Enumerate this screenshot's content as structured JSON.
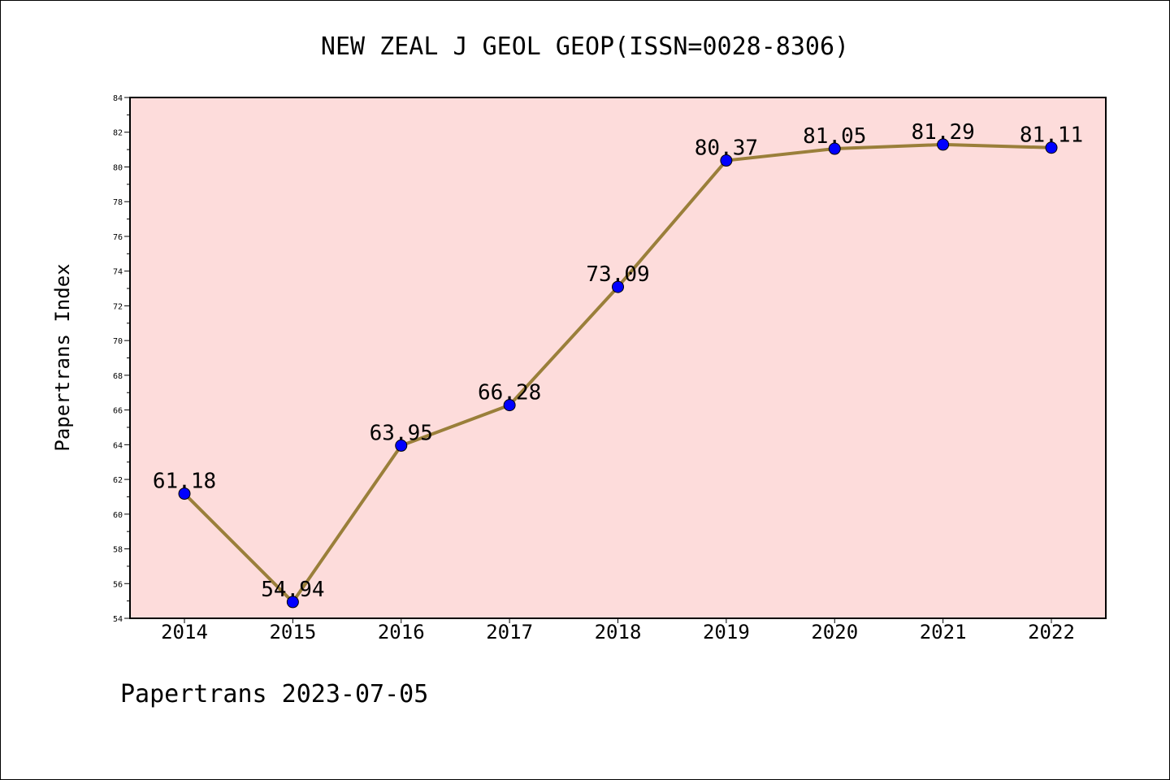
{
  "chart_data": {
    "type": "line",
    "title": "NEW ZEAL J GEOL GEOP(ISSN=0028-8306)",
    "xlabel": "",
    "ylabel": "Papertrans Index",
    "categories": [
      "2014",
      "2015",
      "2016",
      "2017",
      "2018",
      "2019",
      "2020",
      "2021",
      "2022"
    ],
    "series": [
      {
        "values": [
          61.18,
          54.94,
          63.95,
          66.28,
          73.09,
          80.37,
          81.05,
          81.29,
          81.11
        ],
        "labels": [
          "61.18",
          "54.94",
          "63.95",
          "66.28",
          "73.09",
          "80.37",
          "81.05",
          "81.29",
          "81.11"
        ],
        "line_color": "#9a7f3a",
        "marker_color": "#0000ff"
      }
    ],
    "ylim": [
      54,
      84
    ],
    "yticks": [
      "54",
      "56",
      "58",
      "60",
      "62",
      "64",
      "66",
      "68",
      "70",
      "72",
      "74",
      "76",
      "78",
      "80",
      "82",
      "84"
    ],
    "plot_background": "#fddcdb",
    "grid": false
  },
  "footer": "Papertrans 2023-07-05"
}
